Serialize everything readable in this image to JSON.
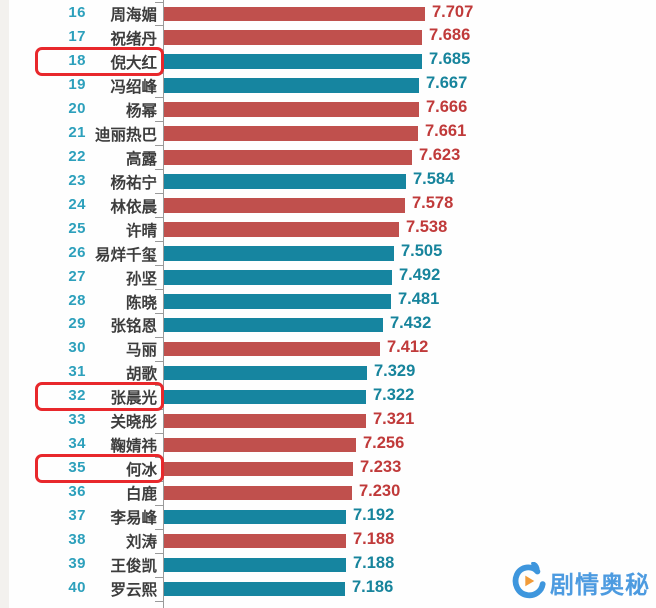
{
  "chart_data": {
    "type": "bar",
    "orientation": "horizontal",
    "title": "",
    "xlabel": "",
    "ylabel": "",
    "value_axis_min": 6.0,
    "value_axis_max": 7.8,
    "grid": false,
    "legend": "none",
    "colors": {
      "bar_red": "#c0504d",
      "bar_teal": "#1685a0",
      "label_red": "#c03a3a",
      "label_teal": "#17849c",
      "rank_teal": "#2da0bc",
      "name_gray": "#3d3d3d",
      "highlight_border": "#e8282c",
      "axis_gray": "#9a9a9a"
    },
    "rows": [
      {
        "rank": "16",
        "name": "周海媚",
        "value": "7.707",
        "color": "red",
        "highlighted": false
      },
      {
        "rank": "17",
        "name": "祝绪丹",
        "value": "7.686",
        "color": "red",
        "highlighted": false
      },
      {
        "rank": "18",
        "name": "倪大红",
        "value": "7.685",
        "color": "teal",
        "highlighted": true
      },
      {
        "rank": "19",
        "name": "冯绍峰",
        "value": "7.667",
        "color": "teal",
        "highlighted": false
      },
      {
        "rank": "20",
        "name": "杨幂",
        "value": "7.666",
        "color": "red",
        "highlighted": false
      },
      {
        "rank": "21",
        "name": "迪丽热巴",
        "value": "7.661",
        "color": "red",
        "highlighted": false
      },
      {
        "rank": "22",
        "name": "高露",
        "value": "7.623",
        "color": "red",
        "highlighted": false
      },
      {
        "rank": "23",
        "name": "杨祐宁",
        "value": "7.584",
        "color": "teal",
        "highlighted": false
      },
      {
        "rank": "24",
        "name": "林依晨",
        "value": "7.578",
        "color": "red",
        "highlighted": false
      },
      {
        "rank": "25",
        "name": "许晴",
        "value": "7.538",
        "color": "red",
        "highlighted": false
      },
      {
        "rank": "26",
        "name": "易烊千玺",
        "value": "7.505",
        "color": "teal",
        "highlighted": false
      },
      {
        "rank": "27",
        "name": "孙坚",
        "value": "7.492",
        "color": "teal",
        "highlighted": false
      },
      {
        "rank": "28",
        "name": "陈晓",
        "value": "7.481",
        "color": "teal",
        "highlighted": false
      },
      {
        "rank": "29",
        "name": "张铭恩",
        "value": "7.432",
        "color": "teal",
        "highlighted": false
      },
      {
        "rank": "30",
        "name": "马丽",
        "value": "7.412",
        "color": "red",
        "highlighted": false
      },
      {
        "rank": "31",
        "name": "胡歌",
        "value": "7.329",
        "color": "teal",
        "highlighted": false
      },
      {
        "rank": "32",
        "name": "张晨光",
        "value": "7.322",
        "color": "teal",
        "highlighted": true
      },
      {
        "rank": "33",
        "name": "关晓彤",
        "value": "7.321",
        "color": "red",
        "highlighted": false
      },
      {
        "rank": "34",
        "name": "鞠婧祎",
        "value": "7.256",
        "color": "red",
        "highlighted": false
      },
      {
        "rank": "35",
        "name": "何冰",
        "value": "7.233",
        "color": "red",
        "highlighted": true
      },
      {
        "rank": "36",
        "name": "白鹿",
        "value": "7.230",
        "color": "red",
        "highlighted": false
      },
      {
        "rank": "37",
        "name": "李易峰",
        "value": "7.192",
        "color": "teal",
        "highlighted": false
      },
      {
        "rank": "38",
        "name": "刘涛",
        "value": "7.188",
        "color": "red",
        "highlighted": false
      },
      {
        "rank": "39",
        "name": "王俊凯",
        "value": "7.188",
        "color": "teal",
        "highlighted": false
      },
      {
        "rank": "40",
        "name": "罗云熙",
        "value": "7.186",
        "color": "teal",
        "highlighted": false
      }
    ]
  },
  "watermark": {
    "text": "剧情奥秘",
    "text_color": "#4d9be0",
    "logo_blue": "#3e96dd",
    "logo_orange": "#f29b38",
    "logo_icon": "drama-secrets-logo"
  }
}
